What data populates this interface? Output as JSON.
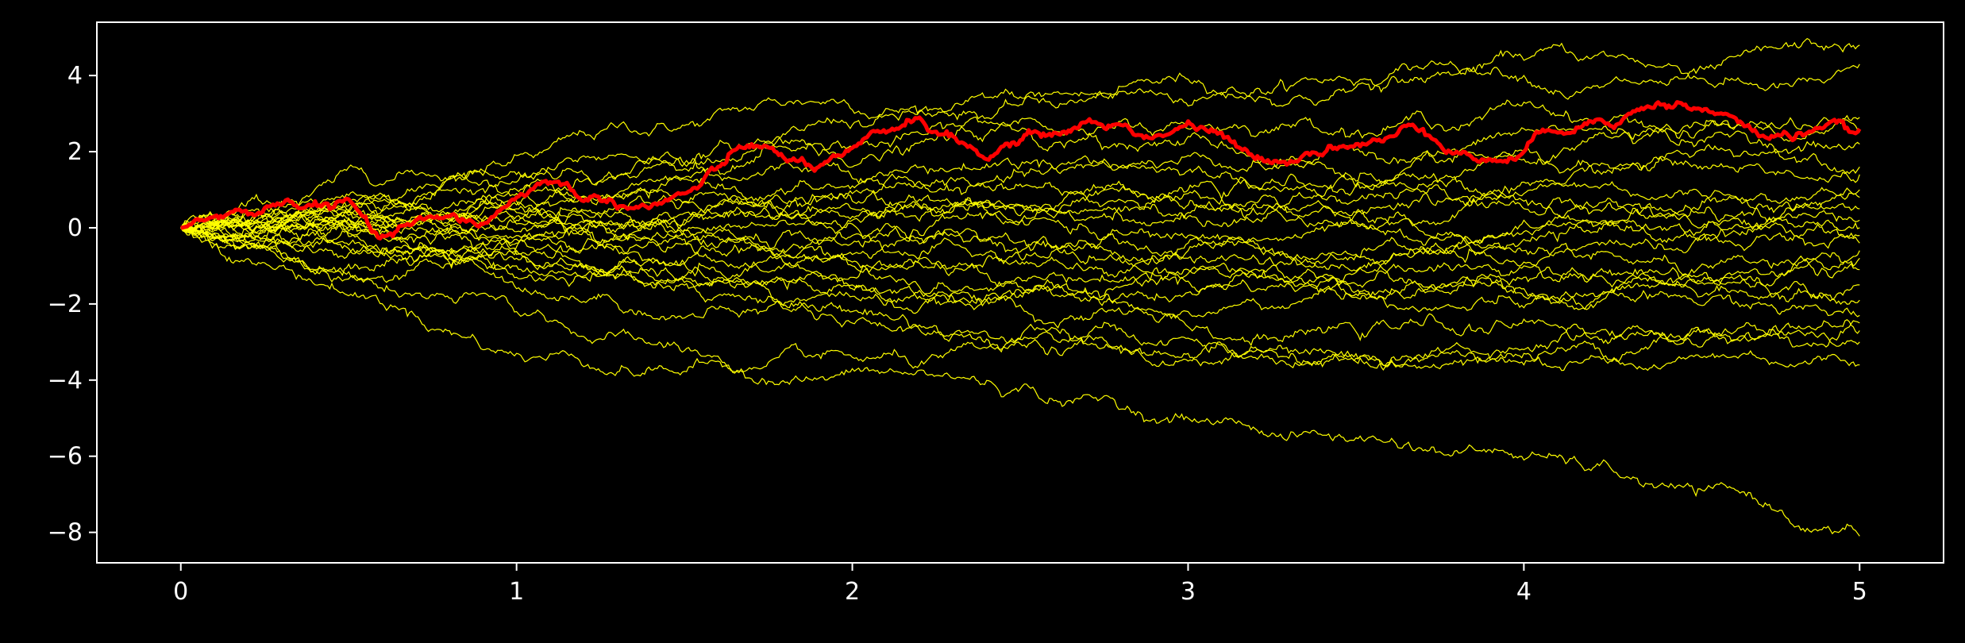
{
  "chart_data": {
    "type": "line",
    "title": "",
    "xlabel": "",
    "ylabel": "",
    "xlim": [
      -0.25,
      5.25
    ],
    "ylim": [
      -8.8,
      5.4
    ],
    "xticks": [
      0,
      1,
      2,
      3,
      4,
      5
    ],
    "yticks": [
      -8,
      -6,
      -4,
      -2,
      0,
      2,
      4
    ],
    "xtick_labels": [
      "0",
      "1",
      "2",
      "3",
      "4",
      "5"
    ],
    "ytick_labels": [
      "−8",
      "−6",
      "−4",
      "−2",
      "0",
      "2",
      "4"
    ],
    "grid": false,
    "background_color": "#000000",
    "axes_color": "#ffffff",
    "series_color": "#ffff00",
    "highlight_color": "#ff0000",
    "background_paths": [
      {
        "x": [
          0,
          1,
          2,
          3,
          4,
          5
        ],
        "y": [
          0,
          1.9,
          3.1,
          3.9,
          4.4,
          4.3
        ]
      },
      {
        "x": [
          0,
          1,
          2,
          3,
          4,
          5
        ],
        "y": [
          0,
          1.4,
          2.7,
          3.2,
          4.0,
          4.8
        ]
      },
      {
        "x": [
          0,
          1,
          2,
          3,
          4,
          5
        ],
        "y": [
          0,
          1.2,
          2.1,
          2.6,
          3.3,
          2.9
        ]
      },
      {
        "x": [
          0,
          1,
          2,
          3,
          4,
          5
        ],
        "y": [
          0,
          0.9,
          1.6,
          2.4,
          2.0,
          2.5
        ]
      },
      {
        "x": [
          0,
          1,
          2,
          3,
          4,
          5
        ],
        "y": [
          0,
          1.0,
          1.3,
          1.9,
          2.6,
          2.2
        ]
      },
      {
        "x": [
          0,
          1,
          2,
          3,
          4,
          5
        ],
        "y": [
          0,
          0.7,
          1.1,
          1.5,
          1.8,
          1.6
        ]
      },
      {
        "x": [
          0,
          1,
          2,
          3,
          4,
          5
        ],
        "y": [
          0,
          0.4,
          0.9,
          0.3,
          1.2,
          1.4
        ]
      },
      {
        "x": [
          0,
          1,
          2,
          3,
          4,
          5
        ],
        "y": [
          0,
          0.6,
          0.2,
          1.0,
          0.5,
          1.0
        ]
      },
      {
        "x": [
          0,
          1,
          2,
          3,
          4,
          5
        ],
        "y": [
          0,
          0.3,
          0.5,
          -0.2,
          0.7,
          0.8
        ]
      },
      {
        "x": [
          0,
          1,
          2,
          3,
          4,
          5
        ],
        "y": [
          0,
          -0.1,
          0.7,
          0.9,
          0.2,
          0.5
        ]
      },
      {
        "x": [
          0,
          1,
          2,
          3,
          4,
          5
        ],
        "y": [
          0,
          0.5,
          -0.4,
          0.4,
          0.9,
          0.2
        ]
      },
      {
        "x": [
          0,
          1,
          2,
          3,
          4,
          5
        ],
        "y": [
          0,
          0.2,
          0.1,
          -0.8,
          -0.3,
          0.0
        ]
      },
      {
        "x": [
          0,
          1,
          2,
          3,
          4,
          5
        ],
        "y": [
          0,
          -0.3,
          0.3,
          0.6,
          -0.6,
          -0.2
        ]
      },
      {
        "x": [
          0,
          1,
          2,
          3,
          4,
          5
        ],
        "y": [
          0,
          0.1,
          -0.7,
          -0.4,
          -0.1,
          -0.4
        ]
      },
      {
        "x": [
          0,
          1,
          2,
          3,
          4,
          5
        ],
        "y": [
          0,
          -0.5,
          -0.2,
          -1.1,
          -0.9,
          -0.6
        ]
      },
      {
        "x": [
          0,
          1,
          2,
          3,
          4,
          5
        ],
        "y": [
          0,
          -0.2,
          -1.0,
          -0.6,
          -1.3,
          -0.8
        ]
      },
      {
        "x": [
          0,
          1,
          2,
          3,
          4,
          5
        ],
        "y": [
          0,
          -0.6,
          -1.3,
          -1.7,
          -1.0,
          -1.1
        ]
      },
      {
        "x": [
          0,
          1,
          2,
          3,
          4,
          5
        ],
        "y": [
          0,
          -0.4,
          -0.9,
          -1.4,
          -1.8,
          -1.5
        ]
      },
      {
        "x": [
          0,
          1,
          2,
          3,
          4,
          5
        ],
        "y": [
          0,
          -0.8,
          -1.6,
          -1.2,
          -2.1,
          -1.9
        ]
      },
      {
        "x": [
          0,
          1,
          2,
          3,
          4,
          5
        ],
        "y": [
          0,
          -0.7,
          -1.8,
          -2.2,
          -1.6,
          -2.3
        ]
      },
      {
        "x": [
          0,
          1,
          2,
          3,
          4,
          5
        ],
        "y": [
          0,
          -1.0,
          -1.5,
          -2.6,
          -2.4,
          -2.5
        ]
      },
      {
        "x": [
          0,
          1,
          2,
          3,
          4,
          5
        ],
        "y": [
          0,
          -1.3,
          -2.2,
          -2.9,
          -3.2,
          -2.7
        ]
      },
      {
        "x": [
          0,
          1,
          2,
          3,
          4,
          5
        ],
        "y": [
          0,
          -1.6,
          -2.5,
          -3.3,
          -3.6,
          -3.0
        ]
      },
      {
        "x": [
          0,
          1,
          2,
          3,
          4,
          5
        ],
        "y": [
          0,
          -2.2,
          -3.4,
          -3.5,
          -3.3,
          -3.6
        ]
      },
      {
        "x": [
          0,
          1,
          2,
          3,
          4,
          5
        ],
        "y": [
          0,
          -3.3,
          -3.7,
          -5.0,
          -6.1,
          -8.1
        ]
      }
    ],
    "highlighted_path": {
      "x": [
        0,
        0.1,
        0.2,
        0.3,
        0.4,
        0.5,
        0.6,
        0.7,
        0.8,
        0.9,
        1.0,
        1.1,
        1.2,
        1.3,
        1.4,
        1.5,
        1.6,
        1.7,
        1.8,
        1.9,
        2.0,
        2.1,
        2.2,
        2.3,
        2.4,
        2.5,
        2.6,
        2.7,
        2.8,
        2.9,
        3.0,
        3.1,
        3.2,
        3.3,
        3.4,
        3.5,
        3.6,
        3.7,
        3.8,
        3.9,
        4.0,
        4.1,
        4.2,
        4.3,
        4.4,
        4.5,
        4.6,
        4.7,
        4.8,
        4.9,
        5.0
      ],
      "y": [
        0,
        0.3,
        0.35,
        0.6,
        0.7,
        0.75,
        -0.2,
        0.2,
        0.3,
        0.1,
        0.8,
        1.2,
        0.7,
        0.5,
        0.55,
        0.9,
        1.6,
        2.2,
        1.8,
        1.6,
        2.1,
        2.5,
        2.9,
        2.4,
        1.8,
        2.3,
        2.5,
        2.8,
        2.7,
        2.4,
        2.8,
        2.5,
        1.8,
        1.7,
        1.9,
        2.2,
        2.4,
        2.6,
        2.0,
        1.8,
        2.0,
        2.5,
        2.8,
        2.9,
        3.3,
        3.1,
        3.0,
        2.4,
        2.3,
        2.7,
        2.6
      ]
    }
  }
}
